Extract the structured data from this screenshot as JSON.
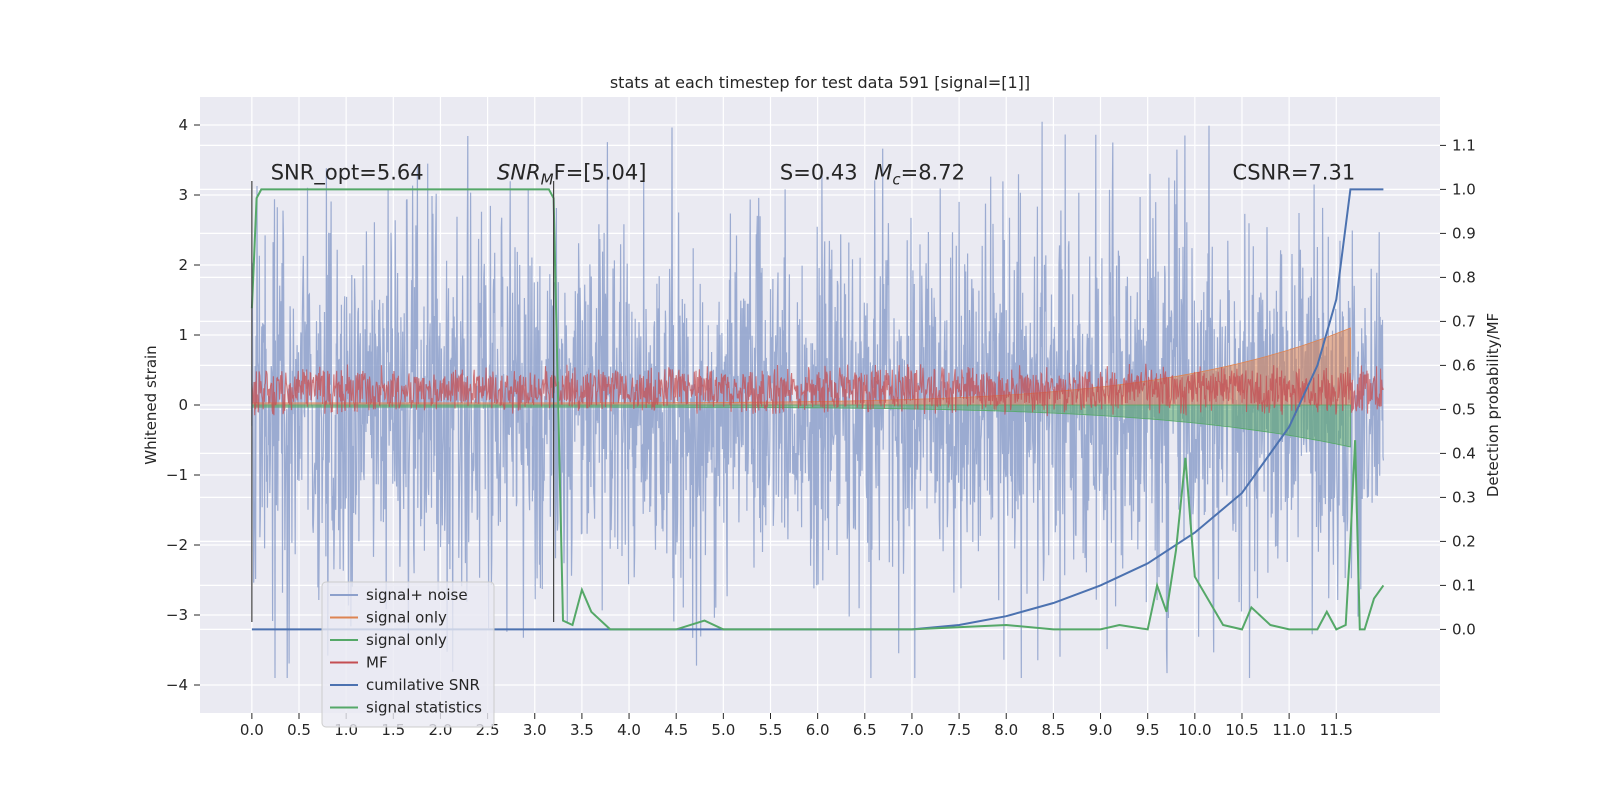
{
  "chart_data": {
    "type": "line",
    "title": "stats at each timestep for test data 591 [signal=[1]]",
    "ylabel": "Whitened strain",
    "ylabel_right": "Detection probability/MF",
    "xlim": [
      -0.55,
      12.6
    ],
    "ylim": [
      -4.4,
      4.4
    ],
    "ylim_right": [
      -0.19,
      1.21
    ],
    "x_ticks": [
      "0.0",
      "0.5",
      "1.0",
      "1.5",
      "2.0",
      "2.5",
      "3.0",
      "3.5",
      "4.0",
      "4.5",
      "5.0",
      "5.5",
      "6.0",
      "6.5",
      "7.0",
      "7.5",
      "8.0",
      "8.5",
      "9.0",
      "9.5",
      "10.0",
      "10.5",
      "11.0",
      "11.5"
    ],
    "y_ticks": [
      "4",
      "3",
      "2",
      "1",
      "0",
      "−1",
      "−2",
      "−3",
      "−4"
    ],
    "y_ticks_right": [
      "1.1",
      "1.0",
      "0.9",
      "0.8",
      "0.7",
      "0.6",
      "0.5",
      "0.4",
      "0.3",
      "0.2",
      "0.1",
      "0.0"
    ],
    "grid": true,
    "legend_position": "lower-left",
    "annotations": [
      {
        "text": "SNR_opt=5.64",
        "x": 0.2,
        "y": 3.22
      },
      {
        "base": "SNR",
        "sub": "M",
        "rest": "F=[5.04]",
        "x": 2.6,
        "y": 3.22
      },
      {
        "text": "S=0.43",
        "x": 5.6,
        "y": 3.22
      },
      {
        "base": "M",
        "sub": "c",
        "rest": "=8.72",
        "x": 6.6,
        "y": 3.22
      },
      {
        "text": "CSNR=7.31",
        "x": 10.4,
        "y": 3.22
      }
    ],
    "series": [
      {
        "name": "signal+ noise",
        "color": "#8da0cb",
        "kind": "noise",
        "x_range": [
          0,
          12
        ],
        "band_sigma": 1.3,
        "peaks_max": 4.1,
        "peaks_min": -3.9
      },
      {
        "name": "signal only",
        "color": "#dd8452",
        "kind": "chirp",
        "x_range": [
          0,
          11.65
        ],
        "y_start": 0.03,
        "y_end": 1.1
      },
      {
        "name": "signal only",
        "color": "#55a868",
        "kind": "chirp",
        "x_range": [
          0,
          11.65
        ],
        "y_start": -0.03,
        "y_end": -0.6
      },
      {
        "name": "MF",
        "color": "#c44e52",
        "kind": "noise",
        "x_range": [
          0,
          12
        ],
        "center": 0.22,
        "band": 0.32
      },
      {
        "name": "cumilative SNR",
        "color": "#4c72b0",
        "axis": "right",
        "x": [
          0,
          7.0,
          7.5,
          8.0,
          8.5,
          9.0,
          9.5,
          10.0,
          10.5,
          11.0,
          11.3,
          11.5,
          11.65,
          11.7,
          12.0
        ],
        "values": [
          0.0,
          0.0,
          0.01,
          0.03,
          0.06,
          0.1,
          0.15,
          0.22,
          0.31,
          0.46,
          0.6,
          0.75,
          1.0,
          1.0,
          1.0
        ]
      },
      {
        "name": "signal statistics",
        "color": "#55a868",
        "axis": "right",
        "x": [
          0.0,
          0.05,
          0.1,
          0.5,
          3.0,
          3.15,
          3.2,
          3.25,
          3.3,
          3.4,
          3.5,
          3.6,
          3.8,
          4.0,
          4.5,
          4.8,
          5.0,
          6.0,
          7.0,
          8.0,
          8.5,
          9.0,
          9.2,
          9.5,
          9.6,
          9.7,
          9.8,
          9.9,
          10.0,
          10.3,
          10.5,
          10.6,
          10.8,
          11.0,
          11.3,
          11.4,
          11.5,
          11.6,
          11.65,
          11.7,
          11.75,
          11.8,
          11.9,
          12.0
        ],
        "values": [
          0.73,
          0.98,
          1.0,
          1.0,
          1.0,
          1.0,
          0.98,
          0.5,
          0.02,
          0.01,
          0.09,
          0.04,
          0.0,
          0.0,
          0.0,
          0.02,
          0.0,
          0.0,
          0.0,
          0.01,
          0.0,
          0.0,
          0.01,
          0.0,
          0.1,
          0.04,
          0.18,
          0.39,
          0.12,
          0.01,
          0.0,
          0.05,
          0.01,
          0.0,
          0.0,
          0.04,
          0.0,
          0.01,
          0.2,
          0.43,
          0.0,
          0.0,
          0.07,
          0.1
        ]
      },
      {
        "name": "",
        "color": "#444444",
        "kind": "vline",
        "x": [
          0.0,
          3.2
        ],
        "axis": "left",
        "y": [
          -3.1,
          3.2
        ]
      }
    ]
  }
}
